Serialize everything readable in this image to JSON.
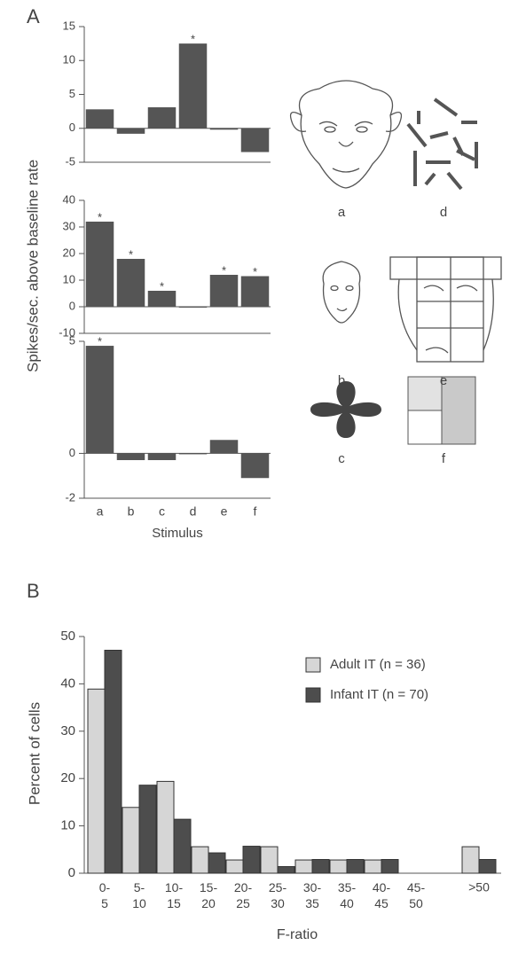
{
  "figure": {
    "panel_labels": [
      "A",
      "B"
    ],
    "stimulus_labels": [
      "a",
      "b",
      "c",
      "d",
      "e",
      "f"
    ]
  },
  "chart_data": [
    {
      "type": "bar",
      "values": [
        2.8,
        -0.8,
        3.1,
        12.5,
        -0.2,
        -3.5
      ],
      "color": "#555555",
      "significant": [
        false,
        false,
        false,
        true,
        false,
        false
      ],
      "significance_marker": "*",
      "ylim": [
        -5,
        15
      ],
      "yticks": [
        -5,
        0,
        5,
        10,
        15
      ]
    },
    {
      "type": "bar",
      "values": [
        32,
        18,
        6,
        -0.3,
        12,
        11.5
      ],
      "color": "#555555",
      "significant": [
        true,
        true,
        true,
        false,
        true,
        true
      ],
      "significance_marker": "*",
      "ylabel": "Spikes/sec. above baseline rate",
      "ylim": [
        -10,
        40
      ],
      "yticks": [
        -10,
        0,
        10,
        20,
        30,
        40
      ]
    },
    {
      "type": "bar",
      "categories": [
        "a",
        "b",
        "c",
        "d",
        "e",
        "f"
      ],
      "values": [
        4.8,
        -0.3,
        -0.3,
        0,
        0.6,
        -1.1
      ],
      "color": "#555555",
      "significant": [
        true,
        false,
        false,
        false,
        false,
        false
      ],
      "significance_marker": "*",
      "xlabel": "Stimulus",
      "ylim": [
        -2,
        5
      ],
      "yticks": [
        -2,
        0,
        5
      ]
    },
    {
      "type": "grouped-bar",
      "categories": [
        "0-\n5",
        "5-\n10",
        "10-\n15",
        "15-\n20",
        "20-\n25",
        "25-\n30",
        "30-\n35",
        "35-\n40",
        "40-\n45",
        "45-\n50",
        ">50"
      ],
      "series": [
        {
          "name": "Adult IT (n = 36)",
          "color": "#d6d6d6",
          "values": [
            38.9,
            13.9,
            19.4,
            5.6,
            2.8,
            5.6,
            2.8,
            2.8,
            2.8,
            0,
            5.6
          ]
        },
        {
          "name": "Infant IT (n = 70)",
          "color": "#4d4d4d",
          "values": [
            47.1,
            18.6,
            11.4,
            4.3,
            5.7,
            1.4,
            2.9,
            2.9,
            2.9,
            0,
            2.9
          ]
        }
      ],
      "xlabel": "F-ratio",
      "ylabel": "Percent of cells",
      "ylim": [
        0,
        50
      ],
      "yticks": [
        0,
        10,
        20,
        30,
        40,
        50
      ],
      "legend": "upper-right"
    }
  ]
}
